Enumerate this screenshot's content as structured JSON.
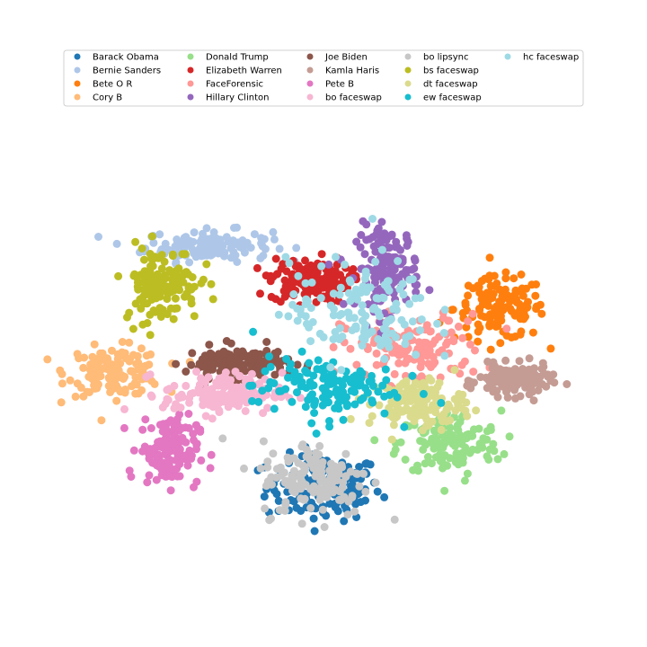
{
  "chart_data": {
    "type": "scatter",
    "title": "",
    "xlabel": "",
    "ylabel": "",
    "axes_visible": false,
    "grid": false,
    "legend": {
      "placement": "top",
      "columns": 5
    },
    "series": [
      {
        "name": "Barack Obama",
        "color": "#1f77b4",
        "center": [
          0.0,
          -3.8
        ],
        "spread": [
          1.45,
          0.95
        ]
      },
      {
        "name": "Bernie Sanders",
        "color": "#aec7e8",
        "center": [
          -3.2,
          3.9
        ],
        "spread": [
          1.6,
          0.45
        ]
      },
      {
        "name": "Bete O R",
        "color": "#ff7f0e",
        "center": [
          4.9,
          1.9
        ],
        "spread": [
          1.15,
          0.9
        ]
      },
      {
        "name": "Cory B",
        "color": "#ffbb78",
        "center": [
          -5.8,
          -0.1
        ],
        "spread": [
          1.2,
          0.7
        ]
      },
      {
        "name": "Donald Trump",
        "color": "#98df8a",
        "center": [
          3.5,
          -2.4
        ],
        "spread": [
          1.3,
          0.95
        ]
      },
      {
        "name": "Elizabeth Warren",
        "color": "#d62728",
        "center": [
          -0.4,
          2.8
        ],
        "spread": [
          1.0,
          0.65
        ]
      },
      {
        "name": "FaceForensic",
        "color": "#ff9896",
        "center": [
          2.5,
          0.6
        ],
        "spread": [
          1.8,
          1.0
        ]
      },
      {
        "name": "Hillary Clinton",
        "color": "#9467bd",
        "center": [
          1.8,
          3.2
        ],
        "spread": [
          0.8,
          1.2
        ]
      },
      {
        "name": "Joe Biden",
        "color": "#8c564b",
        "center": [
          -2.4,
          0.2
        ],
        "spread": [
          1.3,
          0.45
        ]
      },
      {
        "name": "Kamla Haris",
        "color": "#c49c94",
        "center": [
          5.3,
          -0.4
        ],
        "spread": [
          0.9,
          0.45
        ]
      },
      {
        "name": "Pete B",
        "color": "#e377c2",
        "center": [
          -4.3,
          -2.6
        ],
        "spread": [
          0.75,
          1.0
        ]
      },
      {
        "name": "bo faceswap",
        "color": "#f7b6d2",
        "center": [
          -2.8,
          -0.8
        ],
        "spread": [
          1.5,
          0.6
        ]
      },
      {
        "name": "bo lipsync",
        "color": "#c7c7c7",
        "center": [
          -0.2,
          -3.5
        ],
        "spread": [
          1.4,
          1.1
        ]
      },
      {
        "name": "bs faceswap",
        "color": "#bcbd22",
        "center": [
          -4.5,
          2.7
        ],
        "spread": [
          0.95,
          1.1
        ]
      },
      {
        "name": "dt faceswap",
        "color": "#dbdb8d",
        "center": [
          2.6,
          -1.1
        ],
        "spread": [
          1.2,
          0.7
        ]
      },
      {
        "name": "ew faceswap",
        "color": "#17becf",
        "center": [
          0.0,
          -0.6
        ],
        "spread": [
          1.8,
          0.9
        ]
      },
      {
        "name": "hc faceswap",
        "color": "#9edae5",
        "center": [
          1.0,
          1.8
        ],
        "spread": [
          1.8,
          1.5
        ]
      }
    ],
    "xlim": [
      -8,
      8
    ],
    "ylim": [
      -8,
      8
    ]
  }
}
